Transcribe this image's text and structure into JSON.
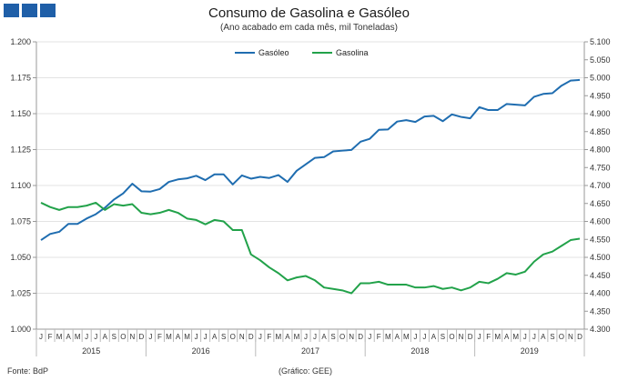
{
  "header": {
    "logo_icon": "bdp-logo-squares",
    "logo_color": "#1f5fa8",
    "title": "Consumo de Gasolina e Gasóleo",
    "subtitle": "(Ano acabado em cada mês,  mil Toneladas)"
  },
  "footer": {
    "source": "Fonte: BdP",
    "credit": "(Gráfico:  GEE)"
  },
  "chart_data": {
    "type": "line",
    "title": "Consumo de Gasolina e Gasóleo",
    "subtitle": "(Ano acabado em cada mês,  mil Toneladas)",
    "months": [
      "J",
      "F",
      "M",
      "A",
      "M",
      "J",
      "J",
      "A",
      "S",
      "O",
      "N",
      "D",
      "J",
      "F",
      "M",
      "A",
      "M",
      "J",
      "J",
      "A",
      "S",
      "O",
      "N",
      "D",
      "J",
      "F",
      "M",
      "A",
      "M",
      "J",
      "J",
      "A",
      "S",
      "O",
      "N",
      "D",
      "J",
      "F",
      "M",
      "A",
      "M",
      "J",
      "J",
      "A",
      "S",
      "O",
      "N",
      "D",
      "J",
      "F",
      "M",
      "A",
      "M",
      "J",
      "J",
      "A",
      "S",
      "O",
      "N",
      "D"
    ],
    "years": [
      "2015",
      "2016",
      "2017",
      "2018",
      "2019"
    ],
    "left_axis": {
      "ylim": [
        1.0,
        1.2
      ],
      "ticks": [
        "1.000",
        "1.025",
        "1.050",
        "1.075",
        "1.100",
        "1.125",
        "1.150",
        "1.175",
        "1.200"
      ]
    },
    "right_axis": {
      "ylim": [
        4300,
        5100
      ],
      "ticks": [
        "4.300",
        "4.350",
        "4.400",
        "4.450",
        "4.500",
        "4.550",
        "4.600",
        "4.650",
        "4.700",
        "4.750",
        "4.800",
        "4.850",
        "4.900",
        "4.950",
        "5.000",
        "5.050",
        "5.100"
      ]
    },
    "legend_position": "top-center",
    "series": [
      {
        "name": "Gasóleo",
        "axis": "right",
        "color": "#1f6db0",
        "values": [
          4548,
          4565,
          4571,
          4593,
          4593,
          4608,
          4620,
          4638,
          4661,
          4678,
          4705,
          4684,
          4683,
          4690,
          4710,
          4717,
          4720,
          4727,
          4715,
          4731,
          4731,
          4703,
          4728,
          4719,
          4724,
          4721,
          4729,
          4710,
          4741,
          4759,
          4777,
          4779,
          4795,
          4797,
          4799,
          4822,
          4830,
          4855,
          4856,
          4878,
          4882,
          4877,
          4892,
          4894,
          4879,
          4898,
          4891,
          4887,
          4918,
          4910,
          4910,
          4927,
          4925,
          4923,
          4947,
          4955,
          4957,
          4978,
          4992,
          4994
        ]
      },
      {
        "name": "Gasolina",
        "axis": "left",
        "color": "#22a24a",
        "values": [
          1.088,
          1.085,
          1.083,
          1.085,
          1.085,
          1.086,
          1.088,
          1.083,
          1.087,
          1.086,
          1.087,
          1.081,
          1.08,
          1.081,
          1.083,
          1.081,
          1.077,
          1.076,
          1.073,
          1.076,
          1.075,
          1.069,
          1.069,
          1.052,
          1.048,
          1.043,
          1.039,
          1.034,
          1.036,
          1.037,
          1.034,
          1.029,
          1.028,
          1.027,
          1.025,
          1.032,
          1.032,
          1.033,
          1.031,
          1.031,
          1.031,
          1.029,
          1.029,
          1.03,
          1.028,
          1.029,
          1.027,
          1.029,
          1.033,
          1.032,
          1.035,
          1.039,
          1.038,
          1.04,
          1.047,
          1.052,
          1.054,
          1.058,
          1.062,
          1.063
        ]
      }
    ]
  }
}
